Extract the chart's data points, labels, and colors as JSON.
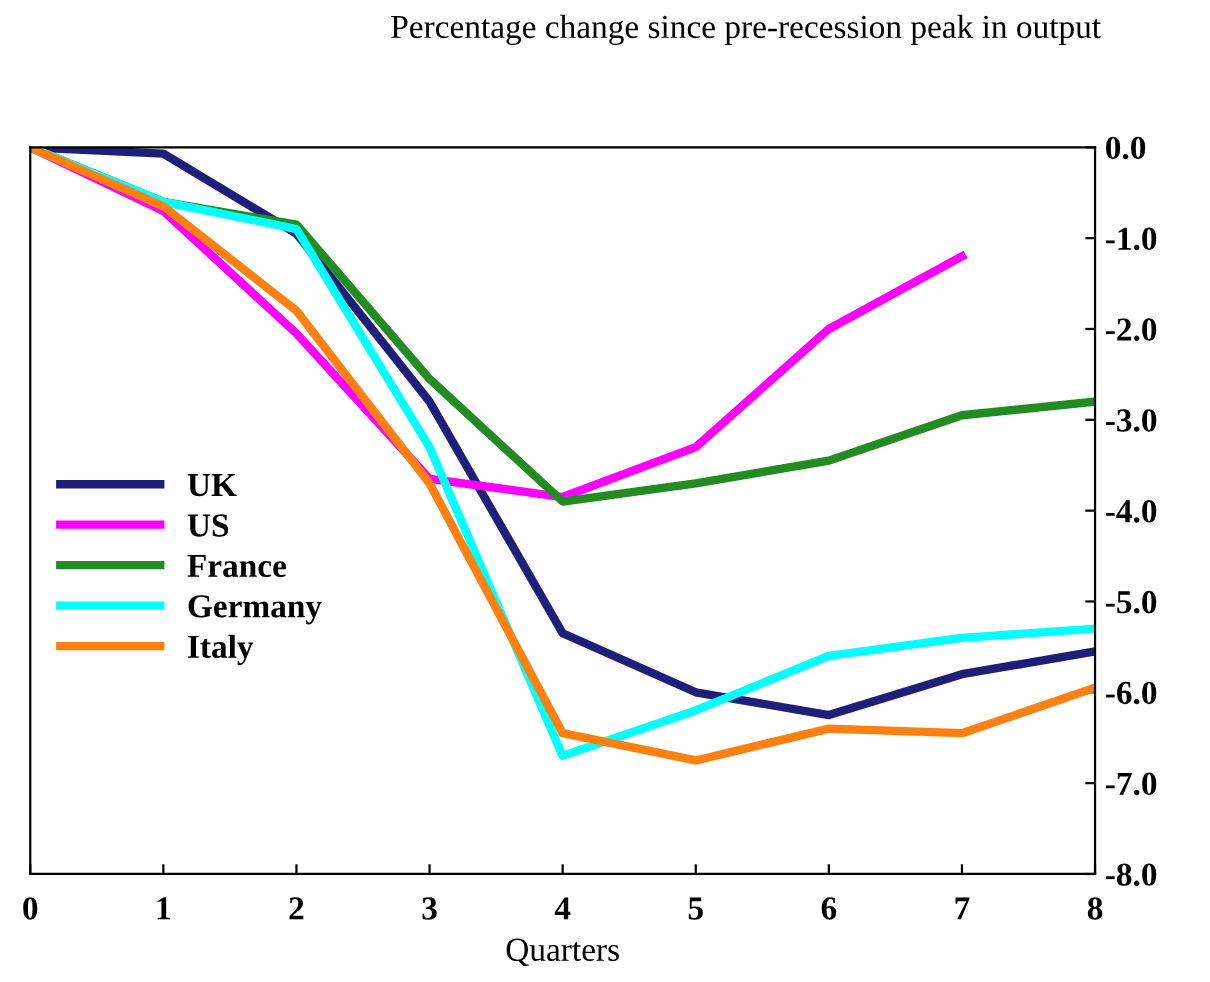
{
  "chart_data": {
    "type": "line",
    "ylabel": "Percentage change since pre-recession peak in output",
    "xlabel": "Quarters",
    "x": [
      0,
      1,
      2,
      3,
      4,
      5,
      6,
      7,
      8
    ],
    "series": [
      {
        "name": "UK",
        "color": "#1f1f7a",
        "values": [
          0,
          -0.07,
          -0.95,
          -2.8,
          -5.35,
          -6.0,
          -6.25,
          -5.8,
          -5.55
        ]
      },
      {
        "name": "US",
        "color": "#ff00ff",
        "values": [
          0,
          -0.7,
          -2.05,
          -3.65,
          -3.85,
          -3.3,
          -2.0,
          -1.2,
          null
        ]
      },
      {
        "name": "France",
        "color": "#228b22",
        "values": [
          0,
          -0.6,
          -0.85,
          -2.55,
          -3.9,
          -3.7,
          -3.45,
          -2.95,
          -2.8
        ]
      },
      {
        "name": "Germany",
        "color": "#00ffff",
        "values": [
          0,
          -0.6,
          -0.9,
          -3.3,
          -6.7,
          -6.2,
          -5.6,
          -5.4,
          -5.3
        ]
      },
      {
        "name": "Italy",
        "color": "#ff7f11",
        "values": [
          0,
          -0.65,
          -1.8,
          -3.7,
          -6.45,
          -6.75,
          -6.4,
          -6.45,
          -5.95
        ]
      }
    ],
    "xlim": [
      0,
      8
    ],
    "xticks": [
      0,
      1,
      2,
      3,
      4,
      5,
      6,
      7,
      8
    ],
    "ylim": [
      -8,
      0
    ],
    "yticks": [
      {
        "value": 0,
        "label": "0.0"
      },
      {
        "value": -1,
        "label": "-1.0"
      },
      {
        "value": -2,
        "label": "-2.0"
      },
      {
        "value": -3,
        "label": "-3.0"
      },
      {
        "value": -4,
        "label": "-4.0"
      },
      {
        "value": -5,
        "label": "-5.0"
      },
      {
        "value": -6,
        "label": "-6.0"
      },
      {
        "value": -7,
        "label": "-7.0"
      },
      {
        "value": -8,
        "label": "-8.0"
      }
    ],
    "grid": false,
    "legend": "left",
    "marker": "none",
    "line_style": "solid"
  }
}
